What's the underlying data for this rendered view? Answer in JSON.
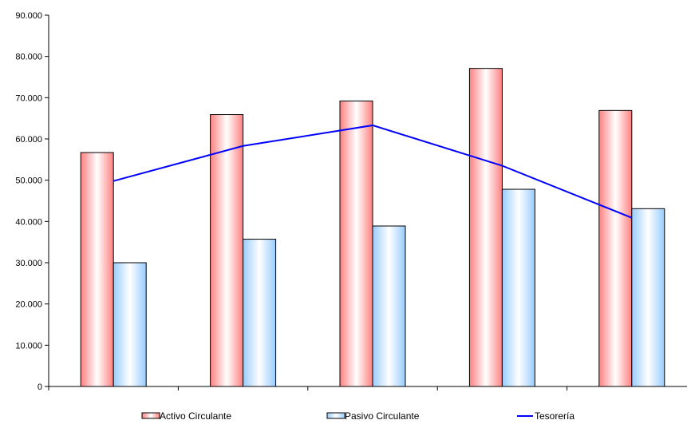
{
  "chart_data": {
    "type": "bar",
    "categories": [
      "",
      "",
      "",
      "",
      ""
    ],
    "series": [
      {
        "name": "Activo Circulante",
        "kind": "bar",
        "color": "#ff8080",
        "values": [
          56700,
          65900,
          69200,
          77100,
          66900
        ]
      },
      {
        "name": "Pasivo Circulante",
        "kind": "bar",
        "color": "#99ccff",
        "values": [
          30000,
          35700,
          38900,
          47800,
          43100
        ]
      },
      {
        "name": "Tesorería",
        "kind": "line",
        "color": "#0000ff",
        "values": [
          49800,
          58300,
          63300,
          53500,
          40900
        ]
      }
    ],
    "yticks": [
      "0",
      "10.000",
      "20.000",
      "30.000",
      "40.000",
      "50.000",
      "60.000",
      "70.000",
      "80.000",
      "90.000"
    ],
    "ylim": [
      0,
      90000
    ],
    "grid": false,
    "legend_position": "bottom",
    "title": "",
    "xlabel": "",
    "ylabel": ""
  }
}
